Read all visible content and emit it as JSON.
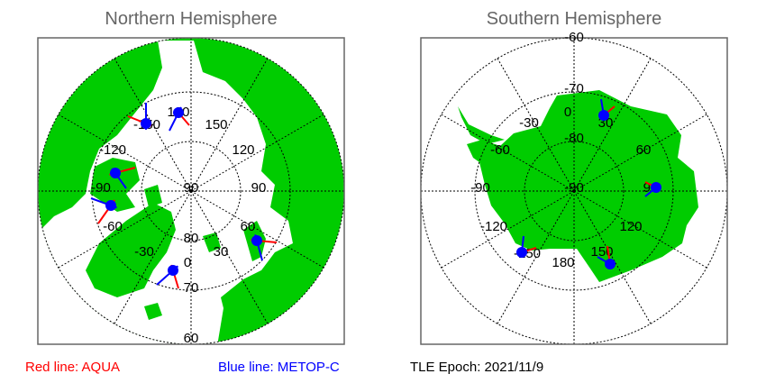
{
  "north": {
    "title": "Northern Hemisphere",
    "lat_labels": [
      "90",
      "80",
      "70",
      "60"
    ],
    "lon_labels": [
      "180",
      "150",
      "120",
      "90",
      "60",
      "30",
      "0",
      "-30",
      "-60",
      "-90",
      "-120",
      "-150"
    ]
  },
  "south": {
    "title": "Southern Hemisphere",
    "lat_labels": [
      "-60",
      "-70",
      "-80",
      "-90"
    ],
    "lon_labels": [
      "0",
      "30",
      "60",
      "90",
      "120",
      "150",
      "180",
      "-150",
      "-120",
      "-90",
      "-60",
      "-30"
    ]
  },
  "legend": {
    "aqua": "Red line: AQUA",
    "metop": "Blue line: METOP-C",
    "epoch": "TLE Epoch: 2021/11/9"
  },
  "colors": {
    "land": "#00cc00",
    "aqua": "#ff0000",
    "metop": "#0000ff",
    "title": "#666666"
  }
}
